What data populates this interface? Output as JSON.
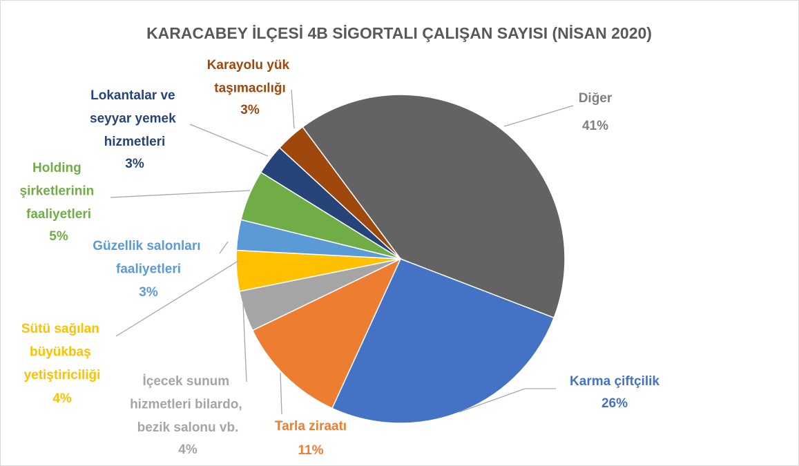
{
  "chart_data": {
    "type": "pie",
    "title": "KARACABEY İLÇESİ 4B SİGORTALI ÇALIŞAN SAYISI (NİSAN 2020)",
    "categories": [
      "Diğer",
      "Karma çiftçilik",
      "Tarla ziraatı",
      "İçecek sunum hizmetleri bilardo, bezik salonu vb.",
      "Sütü sağılan büyükbaş yetiştiriciliği",
      "Güzellik salonları faaliyetleri",
      "Holding şirketlerinin faaliyetleri",
      "Lokantalar ve seyyar yemek hizmetleri",
      "Karayolu yük taşımacılığı"
    ],
    "values": [
      41,
      26,
      11,
      4,
      4,
      3,
      5,
      3,
      3
    ],
    "value_labels": [
      "41%",
      "26%",
      "11%",
      "4%",
      "4%",
      "3%",
      "5%",
      "3%",
      "3%"
    ],
    "colors": [
      "#636363",
      "#4472c4",
      "#ed7d31",
      "#a5a5a5",
      "#ffc000",
      "#5b9bd5",
      "#70ad47",
      "#264478",
      "#9e480e"
    ]
  }
}
